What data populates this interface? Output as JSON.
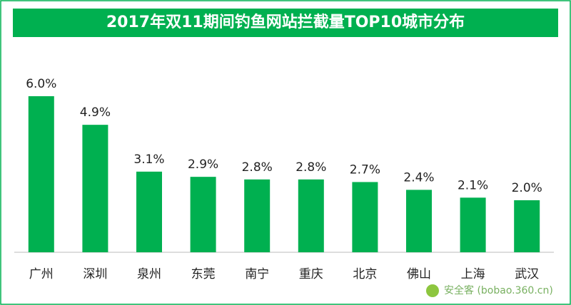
{
  "chart_data": {
    "type": "bar",
    "title": "2017年双11期间钓鱼网站拦截量TOP10城市分布",
    "categories": [
      "广州",
      "深圳",
      "泉州",
      "东莞",
      "南宁",
      "重庆",
      "北京",
      "佛山",
      "上海",
      "武汉"
    ],
    "values": [
      6.0,
      4.9,
      3.1,
      2.9,
      2.8,
      2.8,
      2.7,
      2.4,
      2.1,
      2.0
    ],
    "value_labels": [
      "6.0%",
      "4.9%",
      "3.1%",
      "2.9%",
      "2.8%",
      "2.8%",
      "2.7%",
      "2.4%",
      "2.1%",
      "2.0%"
    ],
    "color": "#00b050",
    "watermark": "安全客 (bobao.360.cn)"
  }
}
